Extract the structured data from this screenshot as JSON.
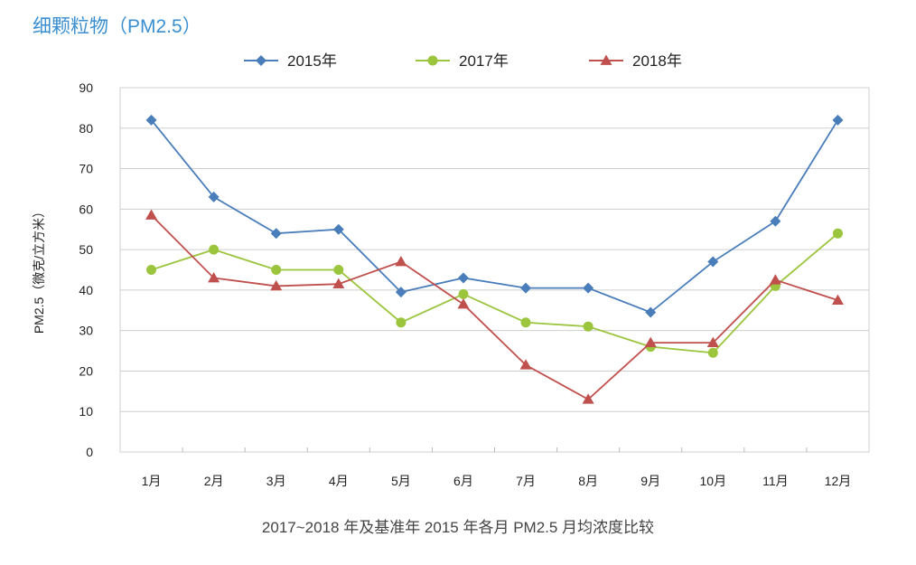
{
  "chart_data": {
    "type": "line",
    "title": "细颗粒物（PM2.5）",
    "subtitle": "2017~2018 年及基准年 2015 年各月 PM2.5 月均浓度比较",
    "xlabel": "",
    "ylabel": "PM2.5（微克/立方米）",
    "ylim": [
      0,
      90
    ],
    "yticks": [
      "0",
      "10",
      "20",
      "30",
      "40",
      "50",
      "60",
      "70",
      "80",
      "90"
    ],
    "grid": true,
    "legend_position": "top",
    "categories": [
      "1月",
      "2月",
      "3月",
      "4月",
      "5月",
      "6月",
      "7月",
      "8月",
      "9月",
      "10月",
      "11月",
      "12月"
    ],
    "series": [
      {
        "name": "2015年",
        "color": "#4a7ebb",
        "marker": "diamond",
        "values": [
          82,
          63,
          54,
          55,
          39.5,
          43,
          40.5,
          40.5,
          34.5,
          47,
          57,
          82
        ]
      },
      {
        "name": "2017年",
        "color": "#9bc53d",
        "marker": "circle",
        "values": [
          45,
          50,
          45,
          45,
          32,
          39,
          32,
          31,
          26,
          24.5,
          41,
          54
        ]
      },
      {
        "name": "2018年",
        "color": "#c0504d",
        "marker": "triangle",
        "values": [
          58.5,
          43,
          41,
          41.5,
          47,
          36.5,
          21.5,
          13,
          27,
          27,
          42.5,
          37.5
        ]
      }
    ]
  }
}
